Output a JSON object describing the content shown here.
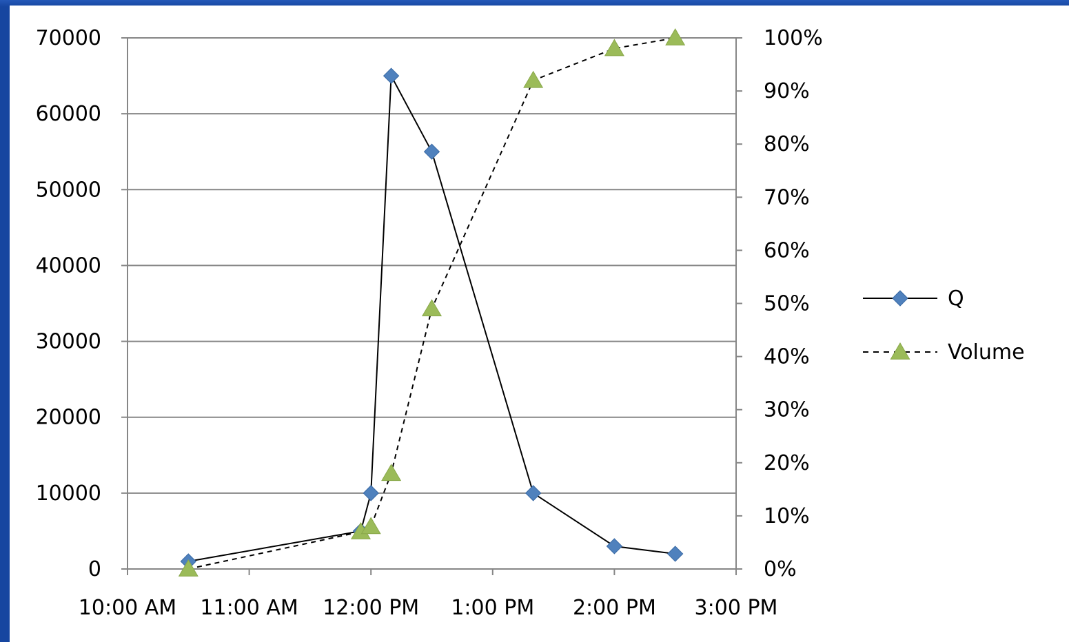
{
  "chart_data": {
    "type": "line",
    "title": "",
    "xlabel": "",
    "ylabel": "",
    "x_ticks": [
      "10:00 AM",
      "11:00 AM",
      "12:00 PM",
      "1:00 PM",
      "2:00 PM",
      "3:00 PM"
    ],
    "x_range_hours": [
      10,
      15
    ],
    "y_left": {
      "ticks": [
        "0",
        "10000",
        "20000",
        "30000",
        "40000",
        "50000",
        "60000",
        "70000"
      ],
      "ylim": [
        0,
        70000
      ]
    },
    "y_right": {
      "ticks": [
        "0%",
        "10%",
        "20%",
        "30%",
        "40%",
        "50%",
        "60%",
        "70%",
        "80%",
        "90%",
        "100%"
      ],
      "ylim": [
        0,
        100
      ]
    },
    "grid": "horizontal",
    "legend_position": "right",
    "series": [
      {
        "name": "Q",
        "axis": "left",
        "color": "#4f81bd",
        "line_style": "solid",
        "marker": "diamond",
        "points": [
          {
            "x": "10:30 AM",
            "y": 1000
          },
          {
            "x": "11:55 AM",
            "y": 5000
          },
          {
            "x": "12:00 PM",
            "y": 10000
          },
          {
            "x": "12:10 PM",
            "y": 65000
          },
          {
            "x": "12:30 PM",
            "y": 55000
          },
          {
            "x": "1:20 PM",
            "y": 10000
          },
          {
            "x": "2:00 PM",
            "y": 3000
          },
          {
            "x": "2:30 PM",
            "y": 2000
          }
        ]
      },
      {
        "name": "Volume",
        "axis": "right",
        "color": "#9bbb59",
        "line_style": "dashed",
        "marker": "triangle",
        "points": [
          {
            "x": "10:30 AM",
            "y": 0
          },
          {
            "x": "11:55 AM",
            "y": 7
          },
          {
            "x": "12:00 PM",
            "y": 8
          },
          {
            "x": "12:10 PM",
            "y": 18
          },
          {
            "x": "12:30 PM",
            "y": 49
          },
          {
            "x": "1:20 PM",
            "y": 92
          },
          {
            "x": "2:00 PM",
            "y": 98
          },
          {
            "x": "2:30 PM",
            "y": 100
          }
        ]
      }
    ]
  }
}
